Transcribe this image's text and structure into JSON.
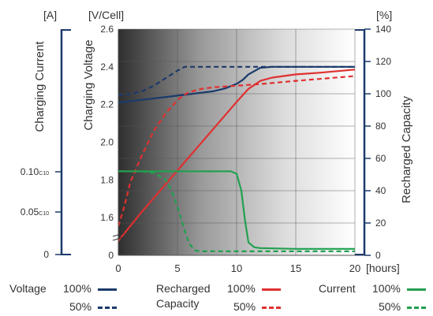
{
  "chart_data": {
    "type": "line",
    "x": {
      "ticks": [
        0,
        5,
        10,
        15,
        20
      ],
      "unit": "[hours]",
      "range": [
        0,
        20
      ]
    },
    "voltage_axis": {
      "unit": "[V/Cell]",
      "label": "Charging Voltage",
      "ticks": [
        "2.6",
        "2.4",
        "2.2",
        "2.0",
        "1.8",
        "1.6",
        "0"
      ],
      "tick_values": [
        2.6,
        2.4,
        2.2,
        2.0,
        1.8,
        1.6,
        0
      ],
      "range": [
        1.4,
        2.6
      ],
      "break": true
    },
    "current_axis": {
      "unit": "[A]",
      "label": "Charging Current",
      "ticks": [
        "0.10",
        "0.05",
        "0"
      ],
      "tick_subscripts": [
        "C10",
        "C10",
        ""
      ],
      "tick_values": [
        0.1,
        0.05,
        0
      ]
    },
    "capacity_axis": {
      "unit": "[%]",
      "label": "Recharged Capacity",
      "ticks": [
        "140",
        "120",
        "100",
        "80",
        "60",
        "40",
        "20",
        "0"
      ],
      "tick_values": [
        140,
        120,
        100,
        80,
        60,
        40,
        20,
        0
      ],
      "range": [
        0,
        140
      ]
    },
    "series": [
      {
        "name": "Voltage 100%",
        "axis": "voltage",
        "color": "#1b3a6b",
        "dash": false,
        "x": [
          0,
          2,
          4,
          6,
          8,
          9,
          10,
          10.5,
          11,
          12,
          13,
          15,
          20
        ],
        "y": [
          2.21,
          2.225,
          2.24,
          2.255,
          2.27,
          2.285,
          2.31,
          2.33,
          2.36,
          2.395,
          2.4,
          2.4,
          2.4
        ]
      },
      {
        "name": "Voltage 50%",
        "axis": "voltage",
        "color": "#1b3a6b",
        "dash": true,
        "x": [
          0,
          1,
          2,
          3,
          4,
          5,
          5.6,
          6,
          10,
          20
        ],
        "y": [
          2.25,
          2.255,
          2.27,
          2.3,
          2.34,
          2.38,
          2.4,
          2.4,
          2.4,
          2.4
        ]
      },
      {
        "name": "Recharged Capacity 100%",
        "axis": "capacity",
        "color": "#e03030",
        "dash": false,
        "x": [
          0,
          2,
          4,
          6,
          8,
          10,
          11,
          12,
          13,
          15,
          17,
          20
        ],
        "y": [
          9,
          27,
          44,
          61,
          78,
          95,
          103,
          108,
          110,
          112,
          113,
          115
        ]
      },
      {
        "name": "Recharged Capacity 50%",
        "axis": "capacity",
        "color": "#e03030",
        "dash": true,
        "x": [
          0,
          0.5,
          1,
          2,
          3,
          4,
          5,
          5.5,
          6,
          7,
          8,
          10,
          12,
          15,
          20
        ],
        "y": [
          18,
          30,
          45,
          62,
          77,
          88,
          96,
          99,
          101,
          103,
          104,
          105,
          106,
          108,
          111
        ]
      },
      {
        "name": "Current 100%",
        "axis": "capacity",
        "color": "#22a050",
        "dash": false,
        "x": [
          0,
          5,
          9.5,
          10,
          10.4,
          10.7,
          11,
          11.5,
          12,
          15,
          20
        ],
        "y": [
          52,
          52,
          52,
          50.5,
          40,
          22,
          8,
          5,
          4.5,
          4,
          4
        ]
      },
      {
        "name": "Current 50%",
        "axis": "capacity",
        "color": "#22a050",
        "dash": true,
        "x": [
          0,
          2,
          3,
          4,
          4.5,
          5,
          5.5,
          6,
          6.5,
          7,
          10,
          20
        ],
        "y": [
          52,
          52,
          51,
          47,
          40,
          30,
          18,
          7,
          3,
          2.5,
          2.5,
          2.5
        ]
      }
    ],
    "legend": {
      "position": "bottom",
      "groups": [
        {
          "label": "Voltage",
          "items": [
            {
              "pct": "100%",
              "color": "#1b3a6b",
              "dash": false
            },
            {
              "pct": "50%",
              "color": "#1b3a6b",
              "dash": true
            }
          ]
        },
        {
          "label": "Recharged",
          "label2": "Capacity",
          "items": [
            {
              "pct": "100%",
              "color": "#e03030",
              "dash": false
            },
            {
              "pct": "50%",
              "color": "#e03030",
              "dash": true
            }
          ]
        },
        {
          "label": "Current",
          "items": [
            {
              "pct": "100%",
              "color": "#22a050",
              "dash": false
            },
            {
              "pct": "50%",
              "color": "#22a050",
              "dash": true
            }
          ]
        }
      ]
    },
    "grid": true,
    "background": "gradient dark-left to white-right"
  }
}
